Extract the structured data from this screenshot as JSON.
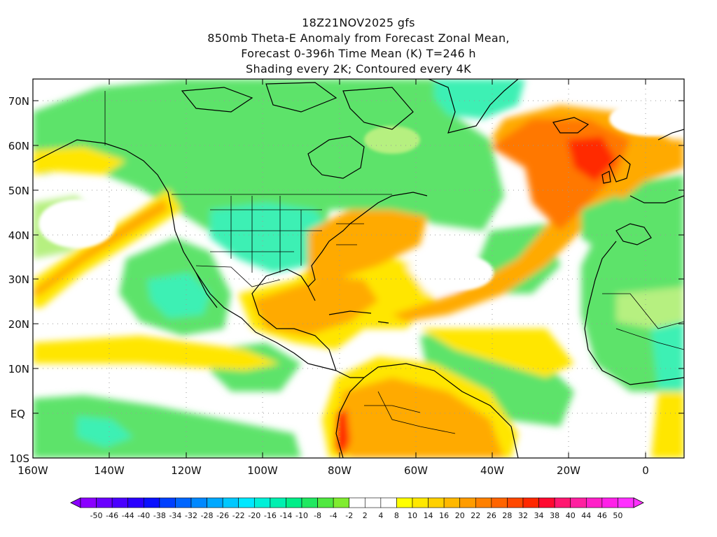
{
  "header": {
    "line1": "18Z21NOV2025 gfs",
    "line2": "850mb Theta-E Anomaly from Forecast Zonal Mean,",
    "line3": "Forecast 0-396h Time Mean (K) T=246 h",
    "line4": "Shading every 2K; Contoured every 4K"
  },
  "map": {
    "lon_range": [
      -160,
      10
    ],
    "lat_range": [
      -10,
      75
    ],
    "lat_labels": [
      "70N",
      "60N",
      "50N",
      "40N",
      "30N",
      "20N",
      "10N",
      "EQ",
      "10S"
    ],
    "lon_labels": [
      "160W",
      "140W",
      "120W",
      "100W",
      "80W",
      "60W",
      "40W",
      "20W",
      "0"
    ],
    "grid": "dotted"
  },
  "colorbar": {
    "labels": [
      "-50",
      "-46",
      "-44",
      "-40",
      "-38",
      "-34",
      "-32",
      "-28",
      "-26",
      "-22",
      "-20",
      "-16",
      "-14",
      "-10",
      "-8",
      "-4",
      "-2",
      "2",
      "4",
      "8",
      "10",
      "14",
      "16",
      "20",
      "22",
      "26",
      "28",
      "32",
      "34",
      "38",
      "40",
      "44",
      "46",
      "50"
    ],
    "colors": [
      "#8a00ff",
      "#6a00ff",
      "#4a00ff",
      "#2a00ff",
      "#0a10ff",
      "#0040ff",
      "#0066ff",
      "#0088ff",
      "#00a8ff",
      "#00c8ff",
      "#00e8ff",
      "#00f0d8",
      "#00f0b0",
      "#00ee88",
      "#20e860",
      "#50e840",
      "#80ec30",
      "#ffffff",
      "#ffffff",
      "#ffffff",
      "#ffff00",
      "#ffe800",
      "#ffd000",
      "#ffb800",
      "#ff9c00",
      "#ff8000",
      "#ff6400",
      "#ff4800",
      "#ff2800",
      "#ff0a30",
      "#ff1870",
      "#ff20a0",
      "#ff20c8",
      "#ff20e8",
      "#ff30ff"
    ]
  },
  "colors": {
    "green": "#5de36a",
    "light_green": "#b6f080",
    "yellow": "#ffe600",
    "orange": "#ffaa00",
    "dark_orange": "#ff7800",
    "red": "#ff2a00",
    "teal": "#3cf0b4"
  }
}
